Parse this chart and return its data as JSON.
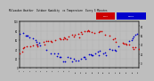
{
  "title": "Milwaukee Weather  Outdoor Humidity",
  "title2": "vs Temperature",
  "title3": "Every 5 Minutes",
  "humidity_color": "#0000cc",
  "temp_color": "#cc0000",
  "bg_color": "#bebebe",
  "marker_size": 1.5,
  "ylim_hum": [
    0,
    100
  ],
  "ylim_temp": [
    0,
    100
  ],
  "n_points": 100
}
